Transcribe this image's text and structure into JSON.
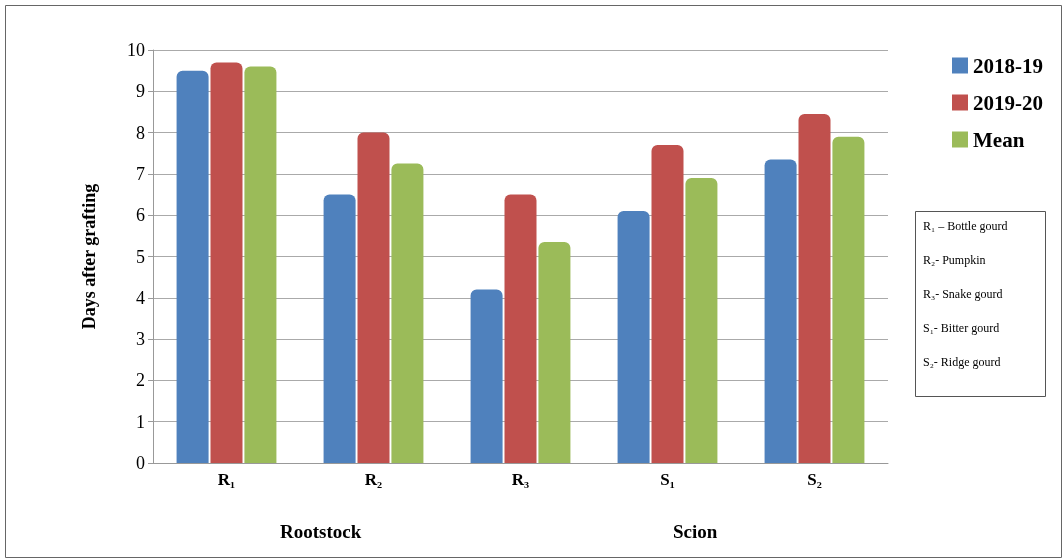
{
  "chart_data": {
    "type": "bar",
    "ylabel": "Days after grafting",
    "categories": [
      "R₁",
      "R₂",
      "R₃",
      "S₁",
      "S₂"
    ],
    "series": [
      {
        "name": "2018-19",
        "color": "#4f81bd",
        "values": [
          9.5,
          6.5,
          4.2,
          6.1,
          7.35
        ]
      },
      {
        "name": "2019-20",
        "color": "#c0504d",
        "values": [
          9.7,
          8.0,
          6.5,
          7.7,
          8.45
        ]
      },
      {
        "name": "Mean",
        "color": "#9bbb59",
        "values": [
          9.6,
          7.25,
          5.35,
          6.9,
          7.9
        ]
      }
    ],
    "ylim": [
      0,
      10
    ],
    "yticks": [
      0,
      1,
      2,
      3,
      4,
      5,
      6,
      7,
      8,
      9,
      10
    ],
    "grid": "y",
    "legend": "top right",
    "annotations": [
      "Rootstock",
      "Scion",
      "R₁ – Bottle gourd",
      "R₂- Pumpkin",
      "R₃- Snake gourd",
      "S₁- Bitter gourd",
      "S₂- Ridge gourd"
    ]
  }
}
